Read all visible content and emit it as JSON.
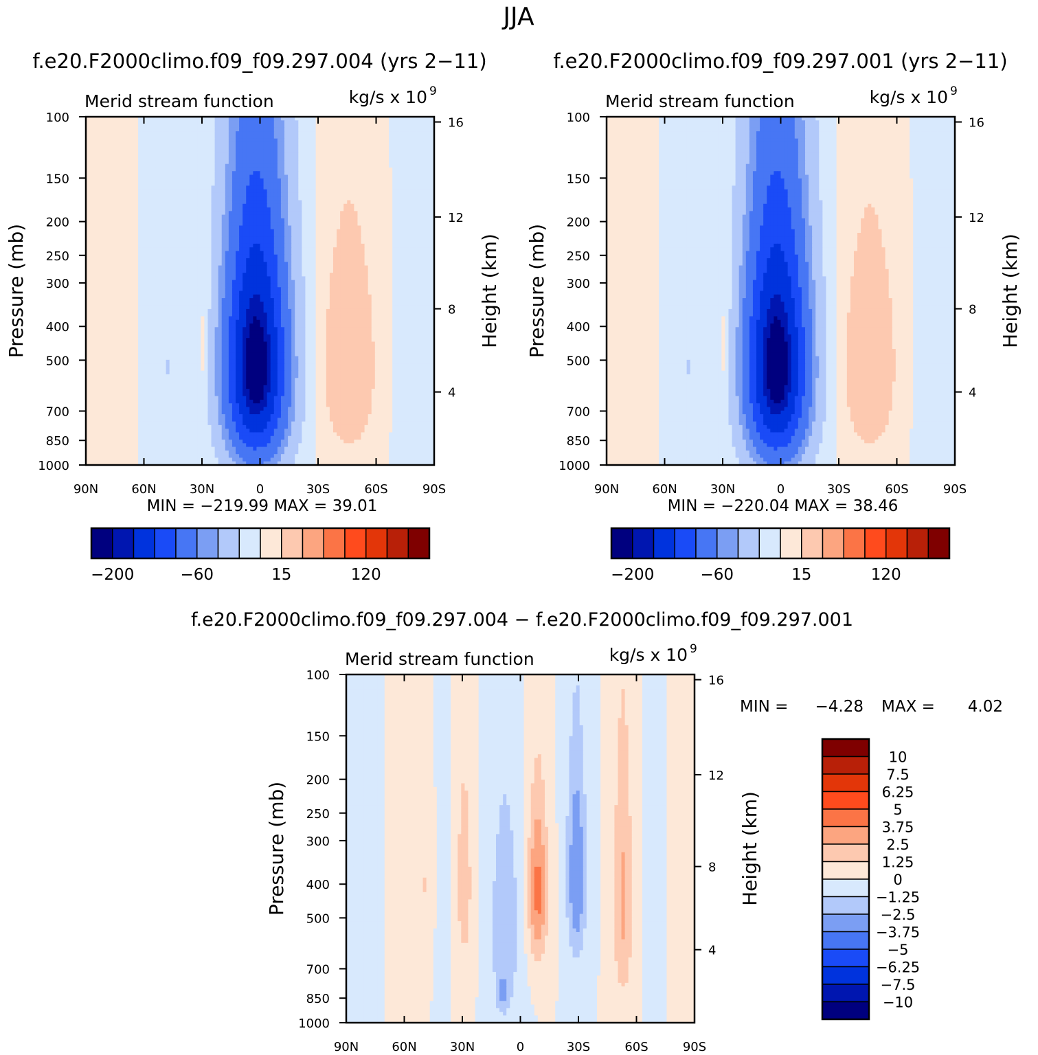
{
  "season": "JJA",
  "panel_titles": {
    "a": "f.e20.F2000climo.f09_f09.297.004 (yrs 2−11)",
    "b": "f.e20.F2000climo.f09_f09.297.001 (yrs 2−11)",
    "c": "f.e20.F2000climo.f09_f09.297.004 − f.e20.F2000climo.f09_f09.297.001"
  },
  "colors": {
    "blues": [
      "#00007f",
      "#0016b0",
      "#0033dd",
      "#1a4bf7",
      "#4776f4",
      "#7b9ef3",
      "#b2c9fa",
      "#d8e9fd"
    ],
    "reds": [
      "#fde8d8",
      "#fdc9b0",
      "#fca580",
      "#fb7446",
      "#ff4b1d",
      "#e33609",
      "#b82008",
      "#7f0000"
    ]
  },
  "chart_data": [
    {
      "type": "contour",
      "id": "a",
      "title": "f.e20.F2000climo.f09_f09.297.004 (yrs 2−11)",
      "left_label": "Merid stream function",
      "units_label": "kg/s x 10",
      "units_exp": "9",
      "ylabel": "Pressure (mb)",
      "y2label": "Height (km)",
      "x_ticks": [
        {
          "v": 90,
          "label": "90N"
        },
        {
          "v": 60,
          "label": "60N"
        },
        {
          "v": 30,
          "label": "30N"
        },
        {
          "v": 0,
          "label": "0"
        },
        {
          "v": -30,
          "label": "30S"
        },
        {
          "v": -60,
          "label": "60S"
        },
        {
          "v": -90,
          "label": "90S"
        }
      ],
      "y_ticks": [
        100,
        150,
        200,
        250,
        300,
        400,
        500,
        700,
        850,
        1000
      ],
      "y2_ticks": [
        {
          "v": 16,
          "p": 103.5
        },
        {
          "v": 12,
          "p": 194
        },
        {
          "v": 8,
          "p": 356
        },
        {
          "v": 4,
          "p": 617
        }
      ],
      "min_label": "MIN = −219.99",
      "max_label": "MAX = 39.01",
      "min": -219.99,
      "max": 39.01,
      "colorbar_labels": [
        "−200",
        "−60",
        "15",
        "120"
      ],
      "features": [
        {
          "lat": 2,
          "p": 520,
          "sx": 16,
          "sy": 420,
          "amp": -225
        },
        {
          "lat": -46,
          "p": 520,
          "sx": 13,
          "sy": 350,
          "amp": 40
        },
        {
          "lat": 29,
          "p": 480,
          "sx": 3.5,
          "sy": 250,
          "amp": 14
        },
        {
          "lat": 48,
          "p": 520,
          "sx": 12,
          "sy": 400,
          "amp": -15
        },
        {
          "lat": 72,
          "p": 550,
          "sx": 8,
          "sy": 500,
          "amp": 8
        },
        {
          "lat": -76,
          "p": 550,
          "sx": 7,
          "sy": 450,
          "amp": -8
        }
      ]
    },
    {
      "type": "contour",
      "id": "b",
      "title": "f.e20.F2000climo.f09_f09.297.001 (yrs 2−11)",
      "left_label": "Merid stream function",
      "units_label": "kg/s x 10",
      "units_exp": "9",
      "ylabel": "Pressure (mb)",
      "y2label": "Height (km)",
      "x_ticks": [
        {
          "v": 90,
          "label": "90N"
        },
        {
          "v": 60,
          "label": "60N"
        },
        {
          "v": 30,
          "label": "30N"
        },
        {
          "v": 0,
          "label": "0"
        },
        {
          "v": -30,
          "label": "30S"
        },
        {
          "v": -60,
          "label": "60S"
        },
        {
          "v": -90,
          "label": "90S"
        }
      ],
      "y_ticks": [
        100,
        150,
        200,
        250,
        300,
        400,
        500,
        700,
        850,
        1000
      ],
      "y2_ticks": [
        {
          "v": 16,
          "p": 103.5
        },
        {
          "v": 12,
          "p": 194
        },
        {
          "v": 8,
          "p": 356
        },
        {
          "v": 4,
          "p": 617
        }
      ],
      "min_label": "MIN = −220.04",
      "max_label": "MAX = 38.46",
      "min": -220.04,
      "max": 38.46,
      "colorbar_labels": [
        "−200",
        "−60",
        "15",
        "120"
      ],
      "features": [
        {
          "lat": 2,
          "p": 520,
          "sx": 16,
          "sy": 420,
          "amp": -225
        },
        {
          "lat": -46,
          "p": 520,
          "sx": 13,
          "sy": 350,
          "amp": 39
        },
        {
          "lat": 29,
          "p": 480,
          "sx": 3.5,
          "sy": 250,
          "amp": 14
        },
        {
          "lat": 48,
          "p": 520,
          "sx": 12,
          "sy": 400,
          "amp": -15
        },
        {
          "lat": 72,
          "p": 550,
          "sx": 8,
          "sy": 500,
          "amp": 8
        },
        {
          "lat": -76,
          "p": 550,
          "sx": 7,
          "sy": 450,
          "amp": -8
        }
      ]
    },
    {
      "type": "contour",
      "id": "c",
      "title": "f.e20.F2000climo.f09_f09.297.004 − f.e20.F2000climo.f09_f09.297.001",
      "left_label": "Merid stream function",
      "units_label": "kg/s x 10",
      "units_exp": "9",
      "ylabel": "Pressure (mb)",
      "y2label": "Height (km)",
      "x_ticks": [
        {
          "v": 90,
          "label": "90N"
        },
        {
          "v": 60,
          "label": "60N"
        },
        {
          "v": 30,
          "label": "30N"
        },
        {
          "v": 0,
          "label": "0"
        },
        {
          "v": -30,
          "label": "30S"
        },
        {
          "v": -60,
          "label": "60S"
        },
        {
          "v": -90,
          "label": "90S"
        }
      ],
      "y_ticks": [
        100,
        150,
        200,
        250,
        300,
        400,
        500,
        700,
        850,
        1000
      ],
      "y2_ticks": [
        {
          "v": 16,
          "p": 103.5
        },
        {
          "v": 12,
          "p": 194
        },
        {
          "v": 8,
          "p": 356
        },
        {
          "v": 4,
          "p": 617
        }
      ],
      "min_label": "MIN =",
      "min_value": "−4.28",
      "max_label": "MAX =",
      "max_value": "4.02",
      "min": -4.28,
      "max": 4.02,
      "colorbar_labels": [
        "10",
        "7.5",
        "6.25",
        "5",
        "3.75",
        "2.5",
        "1.25",
        "0",
        "−1.25",
        "−2.5",
        "−3.75",
        "−5",
        "−6.25",
        "−7.5",
        "−10"
      ],
      "features": [
        {
          "lat": 29,
          "p": 400,
          "sx": 5,
          "sy": 330,
          "amp": 1.8
        },
        {
          "lat": -9,
          "p": 420,
          "sx": 5,
          "sy": 230,
          "amp": 4.2
        },
        {
          "lat": -29,
          "p": 380,
          "sx": 5,
          "sy": 260,
          "amp": -3.8
        },
        {
          "lat": 8,
          "p": 550,
          "sx": 8,
          "sy": 420,
          "amp": -2.3
        },
        {
          "lat": 9,
          "p": 830,
          "sx": 2.5,
          "sy": 90,
          "amp": -1.8
        },
        {
          "lat": -53,
          "p": 450,
          "sx": 5,
          "sy": 380,
          "amp": 2.8
        },
        {
          "lat": 50,
          "p": 400,
          "sx": 3,
          "sy": 160,
          "amp": 1.3
        },
        {
          "lat": 39,
          "p": 450,
          "sx": 2.5,
          "sy": 280,
          "amp": -0.9
        },
        {
          "lat": 65,
          "p": 550,
          "sx": 5,
          "sy": 400,
          "amp": 0.3
        },
        {
          "lat": 76,
          "p": 550,
          "sx": 5,
          "sy": 500,
          "amp": -0.35
        },
        {
          "lat": -70,
          "p": 550,
          "sx": 5,
          "sy": 450,
          "amp": -0.4
        },
        {
          "lat": -80,
          "p": 600,
          "sx": 4,
          "sy": 500,
          "amp": 0.3
        }
      ]
    }
  ]
}
